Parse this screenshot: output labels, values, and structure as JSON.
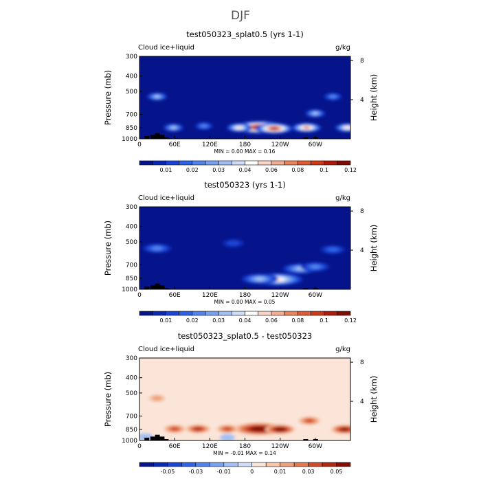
{
  "figure_title": "DJF",
  "colors": {
    "background": "#ffffff",
    "field_base": "#06148c",
    "topography": "#000000",
    "diff_zero": "#fbe5d8"
  },
  "chart_data": [
    {
      "type": "heatmap",
      "title": "test050323_splat0.5 (yrs 1-1)",
      "variable_label": "Cloud ice+liquid",
      "units_label": "g/kg",
      "xlabel": "",
      "ylabel": "Pressure (mb)",
      "y2label": "Height (km)",
      "x_ticks": [
        "0",
        "60E",
        "120E",
        "180",
        "120W",
        "60W"
      ],
      "x_tick_values": [
        0,
        60,
        120,
        180,
        240,
        300
      ],
      "xlim": [
        0,
        360
      ],
      "y_ticks": [
        "300",
        "400",
        "500",
        "700",
        "850",
        "1000"
      ],
      "y_tick_values": [
        300,
        400,
        500,
        700,
        850,
        1000
      ],
      "ylim": [
        1000,
        300
      ],
      "y_scale": "log-pressure",
      "y2_ticks": [
        "4",
        "8"
      ],
      "y2_tick_values": [
        4,
        8
      ],
      "stats_text": "MIN =     0.00   MAX =    0.16",
      "min": 0.0,
      "max": 0.16,
      "colorbar_labels": [
        "0.01",
        "0.02",
        "0.03",
        "0.04",
        "0.06",
        "0.08",
        "0.1",
        "0.12"
      ],
      "colorbar_levels": [
        0.005,
        0.01,
        0.015,
        0.02,
        0.025,
        0.03,
        0.035,
        0.04,
        0.05,
        0.06,
        0.07,
        0.08,
        0.09,
        0.1,
        0.11,
        0.12
      ],
      "colorbar_colors": [
        "#06148c",
        "#0a2ab4",
        "#1a45d6",
        "#2f63e6",
        "#5283ec",
        "#78a2f0",
        "#a2c0f4",
        "#cfdcf8",
        "#ffffff",
        "#f9d4c4",
        "#f2ad92",
        "#e8845f",
        "#dc5c35",
        "#cc3a1a",
        "#ac1c0c",
        "#800c04"
      ],
      "features": [
        {
          "lon": 205,
          "p": 845,
          "value": 0.16
        },
        {
          "lon": 230,
          "p": 860,
          "value": 0.1
        },
        {
          "lon": 170,
          "p": 850,
          "value": 0.05
        },
        {
          "lon": 285,
          "p": 850,
          "value": 0.07
        },
        {
          "lon": 300,
          "p": 690,
          "value": 0.03
        },
        {
          "lon": 30,
          "p": 540,
          "value": 0.03
        },
        {
          "lon": 58,
          "p": 850,
          "value": 0.03
        },
        {
          "lon": 110,
          "p": 830,
          "value": 0.02
        },
        {
          "lon": 355,
          "p": 850,
          "value": 0.05
        },
        {
          "lon": 330,
          "p": 540,
          "value": 0.02
        }
      ],
      "topography": [
        [
          12,
          960
        ],
        [
          22,
          945
        ],
        [
          30,
          920
        ],
        [
          38,
          945
        ],
        [
          45,
          980
        ],
        [
          283,
          980
        ],
        [
          300,
          980
        ]
      ]
    },
    {
      "type": "heatmap",
      "title": "test050323 (yrs 1-1)",
      "variable_label": "Cloud ice+liquid",
      "units_label": "g/kg",
      "xlabel": "",
      "ylabel": "Pressure (mb)",
      "y2label": "Height (km)",
      "x_ticks": [
        "0",
        "60E",
        "120E",
        "180",
        "120W",
        "60W"
      ],
      "x_tick_values": [
        0,
        60,
        120,
        180,
        240,
        300
      ],
      "xlim": [
        0,
        360
      ],
      "y_ticks": [
        "300",
        "400",
        "500",
        "700",
        "850",
        "1000"
      ],
      "y_tick_values": [
        300,
        400,
        500,
        700,
        850,
        1000
      ],
      "ylim": [
        1000,
        300
      ],
      "y_scale": "log-pressure",
      "y2_ticks": [
        "4",
        "8"
      ],
      "y2_tick_values": [
        4,
        8
      ],
      "stats_text": "MIN =     0.00   MAX =    0.05",
      "min": 0.0,
      "max": 0.05,
      "colorbar_labels": [
        "0.01",
        "0.02",
        "0.03",
        "0.04",
        "0.06",
        "0.08",
        "0.1",
        "0.12"
      ],
      "colorbar_levels": [
        0.005,
        0.01,
        0.015,
        0.02,
        0.025,
        0.03,
        0.035,
        0.04,
        0.05,
        0.06,
        0.07,
        0.08,
        0.09,
        0.1,
        0.11,
        0.12
      ],
      "colorbar_colors": [
        "#06148c",
        "#0a2ab4",
        "#1a45d6",
        "#2f63e6",
        "#5283ec",
        "#78a2f0",
        "#a2c0f4",
        "#cfdcf8",
        "#ffffff",
        "#f9d4c4",
        "#f2ad92",
        "#e8845f",
        "#dc5c35",
        "#cc3a1a",
        "#ac1c0c",
        "#800c04"
      ],
      "features": [
        {
          "lon": 235,
          "p": 865,
          "value": 0.05
        },
        {
          "lon": 205,
          "p": 860,
          "value": 0.03
        },
        {
          "lon": 275,
          "p": 740,
          "value": 0.03
        },
        {
          "lon": 300,
          "p": 720,
          "value": 0.02
        },
        {
          "lon": 30,
          "p": 550,
          "value": 0.02
        },
        {
          "lon": 330,
          "p": 560,
          "value": 0.015
        },
        {
          "lon": 160,
          "p": 510,
          "value": 0.01
        }
      ],
      "topography": [
        [
          12,
          960
        ],
        [
          22,
          945
        ],
        [
          30,
          920
        ],
        [
          38,
          945
        ],
        [
          45,
          980
        ],
        [
          283,
          980
        ],
        [
          300,
          980
        ]
      ]
    },
    {
      "type": "heatmap",
      "title": "test050323_splat0.5 - test050323",
      "variable_label": "Cloud ice+liquid",
      "units_label": "g/kg",
      "xlabel": "",
      "ylabel": "Pressure (mb)",
      "y2label": "Height (km)",
      "x_ticks": [
        "0",
        "60E",
        "120E",
        "180",
        "120W",
        "60W"
      ],
      "x_tick_values": [
        0,
        60,
        120,
        180,
        240,
        300
      ],
      "xlim": [
        0,
        360
      ],
      "y_ticks": [
        "300",
        "400",
        "500",
        "700",
        "850",
        "1000"
      ],
      "y_tick_values": [
        300,
        400,
        500,
        700,
        850,
        1000
      ],
      "ylim": [
        1000,
        300
      ],
      "y_scale": "log-pressure",
      "y2_ticks": [
        "4",
        "8"
      ],
      "y2_tick_values": [
        4,
        8
      ],
      "stats_text": "MIN =    -0.01   MAX =    0.14",
      "min": -0.01,
      "max": 0.14,
      "colorbar_labels": [
        "-0.05",
        "-0.03",
        "-0.01",
        "0",
        "0.01",
        "0.03",
        "0.05"
      ],
      "colorbar_levels": [
        -0.06,
        -0.05,
        -0.04,
        -0.03,
        -0.02,
        -0.01,
        -0.005,
        0,
        0.005,
        0.01,
        0.02,
        0.03,
        0.04,
        0.05,
        0.06
      ],
      "colorbar_colors": [
        "#06148c",
        "#0a2ab4",
        "#1a45d6",
        "#2f63e6",
        "#5283ec",
        "#78a2f0",
        "#a2c0f4",
        "#cfdcf8",
        "#fbe5d8",
        "#f6c5aa",
        "#eea07c",
        "#e27750",
        "#cf4a28",
        "#b02a12",
        "#860c04"
      ],
      "features": [
        {
          "lon": 205,
          "p": 845,
          "value": 0.14
        },
        {
          "lon": 240,
          "p": 850,
          "value": 0.06
        },
        {
          "lon": 150,
          "p": 845,
          "value": 0.03
        },
        {
          "lon": 100,
          "p": 845,
          "value": 0.04
        },
        {
          "lon": 60,
          "p": 845,
          "value": 0.03
        },
        {
          "lon": 350,
          "p": 850,
          "value": 0.05
        },
        {
          "lon": 290,
          "p": 750,
          "value": 0.03
        },
        {
          "lon": 30,
          "p": 540,
          "value": 0.01
        },
        {
          "lon": 10,
          "p": 950,
          "value": -0.005
        },
        {
          "lon": 150,
          "p": 960,
          "value": -0.005
        }
      ],
      "topography": [
        [
          12,
          960
        ],
        [
          22,
          945
        ],
        [
          30,
          920
        ],
        [
          38,
          945
        ],
        [
          45,
          980
        ],
        [
          283,
          980
        ],
        [
          300,
          980
        ]
      ]
    }
  ]
}
